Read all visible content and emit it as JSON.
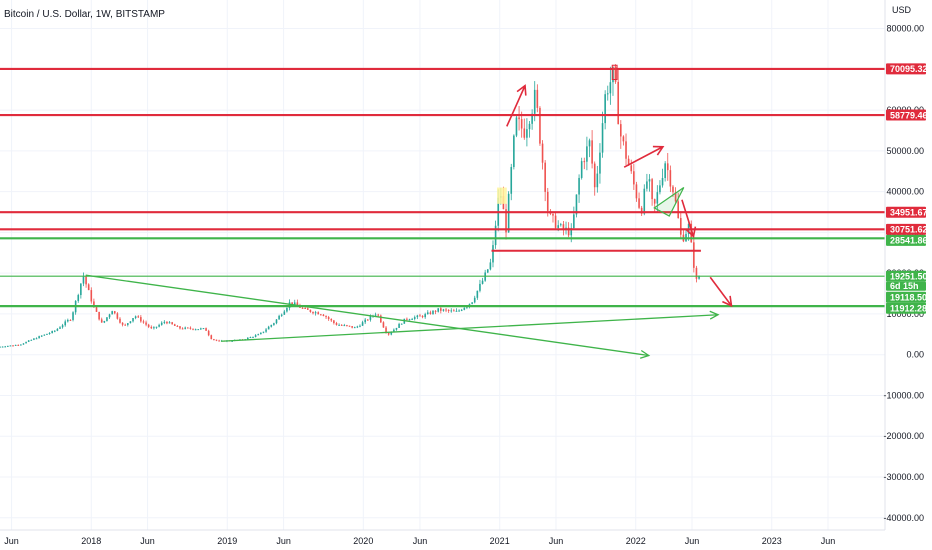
{
  "header": {
    "title": "Bitcoin / U.S. Dollar, 1W, BITSTAMP"
  },
  "price_axis": {
    "currency_label": "USD"
  },
  "colors": {
    "up": "#26a69a",
    "down": "#ef5350",
    "red_level": "#e02b3c",
    "green_level": "#3fb44a",
    "grid": "#f0f3fa",
    "highlight": "#fff59d"
  },
  "chart_data": {
    "type": "candlestick",
    "title": "Bitcoin / U.S. Dollar, 1W, BITSTAMP",
    "xlabel": "",
    "ylabel": "USD",
    "ylim": [
      -43000,
      87000
    ],
    "y_ticks": [
      80000,
      70000,
      60000,
      50000,
      40000,
      30000,
      20000,
      10000,
      0,
      -10000,
      -20000,
      -30000,
      -40000
    ],
    "y_tick_labels": [
      "80000.00",
      "70000.00",
      "60000.00",
      "50000.00",
      "40000.00",
      "30000.00",
      "20000.00",
      "10000.00",
      "0.00",
      "-10000.00",
      "-20000.00",
      "-30000.00",
      "-40000.00"
    ],
    "xlim": [
      "2017-05-01",
      "2023-11-01"
    ],
    "x_ticks": [
      {
        "date": "2017-06-01",
        "label": "Jun"
      },
      {
        "date": "2018-01-01",
        "label": "2018"
      },
      {
        "date": "2018-06-01",
        "label": "Jun"
      },
      {
        "date": "2019-01-01",
        "label": "2019"
      },
      {
        "date": "2019-06-01",
        "label": "Jun"
      },
      {
        "date": "2020-01-01",
        "label": "2020"
      },
      {
        "date": "2020-06-01",
        "label": "Jun"
      },
      {
        "date": "2021-01-01",
        "label": "2021"
      },
      {
        "date": "2021-06-01",
        "label": "Jun"
      },
      {
        "date": "2022-01-01",
        "label": "2022"
      },
      {
        "date": "2022-06-01",
        "label": "Jun"
      },
      {
        "date": "2023-01-01",
        "label": "2023"
      },
      {
        "date": "2023-06-01",
        "label": "Jun"
      }
    ],
    "price_path": [
      [
        "2017-05-01",
        1900
      ],
      [
        "2017-07-01",
        2500
      ],
      [
        "2017-08-15",
        4200
      ],
      [
        "2017-10-01",
        5800
      ],
      [
        "2017-11-15",
        9000
      ],
      [
        "2017-12-17",
        19500
      ],
      [
        "2018-01-15",
        11500
      ],
      [
        "2018-02-06",
        7500
      ],
      [
        "2018-03-05",
        11000
      ],
      [
        "2018-04-05",
        6800
      ],
      [
        "2018-05-05",
        9600
      ],
      [
        "2018-06-20",
        6200
      ],
      [
        "2018-07-25",
        8200
      ],
      [
        "2018-09-01",
        6500
      ],
      [
        "2018-11-10",
        6300
      ],
      [
        "2018-11-25",
        4000
      ],
      [
        "2018-12-15",
        3300
      ],
      [
        "2019-02-15",
        3600
      ],
      [
        "2019-04-05",
        5000
      ],
      [
        "2019-05-15",
        8000
      ],
      [
        "2019-06-26",
        12900
      ],
      [
        "2019-08-05",
        11000
      ],
      [
        "2019-09-20",
        10000
      ],
      [
        "2019-10-25",
        7500
      ],
      [
        "2019-12-18",
        6600
      ],
      [
        "2020-02-13",
        10300
      ],
      [
        "2020-03-13",
        4800
      ],
      [
        "2020-05-01",
        8800
      ],
      [
        "2020-06-15",
        9500
      ],
      [
        "2020-07-27",
        11000
      ],
      [
        "2020-09-15",
        10500
      ],
      [
        "2020-10-25",
        13000
      ],
      [
        "2020-11-25",
        18500
      ],
      [
        "2020-12-17",
        23000
      ],
      [
        "2021-01-08",
        41000
      ],
      [
        "2021-01-25",
        31000
      ],
      [
        "2021-02-20",
        57000
      ],
      [
        "2021-03-15",
        55000
      ],
      [
        "2021-04-14",
        63500
      ],
      [
        "2021-05-19",
        34000
      ],
      [
        "2021-06-20",
        31000
      ],
      [
        "2021-07-20",
        30000
      ],
      [
        "2021-08-15",
        47000
      ],
      [
        "2021-09-07",
        52000
      ],
      [
        "2021-09-21",
        40000
      ],
      [
        "2021-10-20",
        65000
      ],
      [
        "2021-11-10",
        68500
      ],
      [
        "2021-11-28",
        54000
      ],
      [
        "2021-12-20",
        46500
      ],
      [
        "2022-01-22",
        35000
      ],
      [
        "2022-02-10",
        44000
      ],
      [
        "2022-02-24",
        35000
      ],
      [
        "2022-03-28",
        47500
      ],
      [
        "2022-04-20",
        40000
      ],
      [
        "2022-05-11",
        28000
      ],
      [
        "2022-05-30",
        31500
      ],
      [
        "2022-06-13",
        22000
      ],
      [
        "2022-06-18",
        17600
      ],
      [
        "2022-06-24",
        19251.5
      ]
    ],
    "levels": [
      {
        "price": 70095.32,
        "color": "red",
        "label": "70095.32"
      },
      {
        "price": 58779.46,
        "color": "red",
        "label": "58779.46"
      },
      {
        "price": 34951.67,
        "color": "red",
        "label": "34951.67"
      },
      {
        "price": 30751.62,
        "color": "red",
        "label": "30751.62"
      },
      {
        "price": 28541.86,
        "color": "green",
        "label": "28541.86"
      },
      {
        "price": 19251.5,
        "color": "green",
        "label": "19251.50"
      },
      {
        "price": 19118.5,
        "color": "green",
        "label": "19118.50"
      },
      {
        "price": 11912.28,
        "color": "green",
        "label": "11912.28"
      }
    ],
    "current_price": {
      "price": 19251.5,
      "label": "19251.50",
      "countdown": "6d 15h"
    },
    "annotations": {
      "red_short_line": {
        "from": [
          "2020-12-10",
          25500
        ],
        "to": [
          "2022-06-25",
          25500
        ]
      },
      "green_lines": [
        {
          "from": [
            "2017-12-17",
            19500
          ],
          "to": [
            "2022-02-05",
            -200
          ]
        },
        {
          "from": [
            "2018-12-15",
            3300
          ],
          "to": [
            "2022-08-10",
            9800
          ]
        }
      ],
      "red_arrows": [
        {
          "from": [
            "2021-01-20",
            56000
          ],
          "to": [
            "2021-03-10",
            66000
          ]
        },
        {
          "from": [
            "2021-12-01",
            46000
          ],
          "to": [
            "2022-03-15",
            51000
          ]
        },
        {
          "from": [
            "2022-05-05",
            38000
          ],
          "to": [
            "2022-06-05",
            29000
          ]
        },
        {
          "from": [
            "2022-07-20",
            19000
          ],
          "to": [
            "2022-09-15",
            12000
          ]
        }
      ],
      "green_triangle": [
        [
          "2022-02-20",
          36000
        ],
        [
          "2022-05-10",
          41000
        ],
        [
          "2022-04-01",
          34000
        ]
      ],
      "highlight_box": {
        "from": [
          "2020-12-25",
          37000
        ],
        "to": [
          "2021-01-20",
          41000
        ]
      },
      "red_peak_box": {
        "from": [
          "2021-10-30",
          67500
        ],
        "to": [
          "2021-11-12",
          71000
        ]
      }
    }
  }
}
